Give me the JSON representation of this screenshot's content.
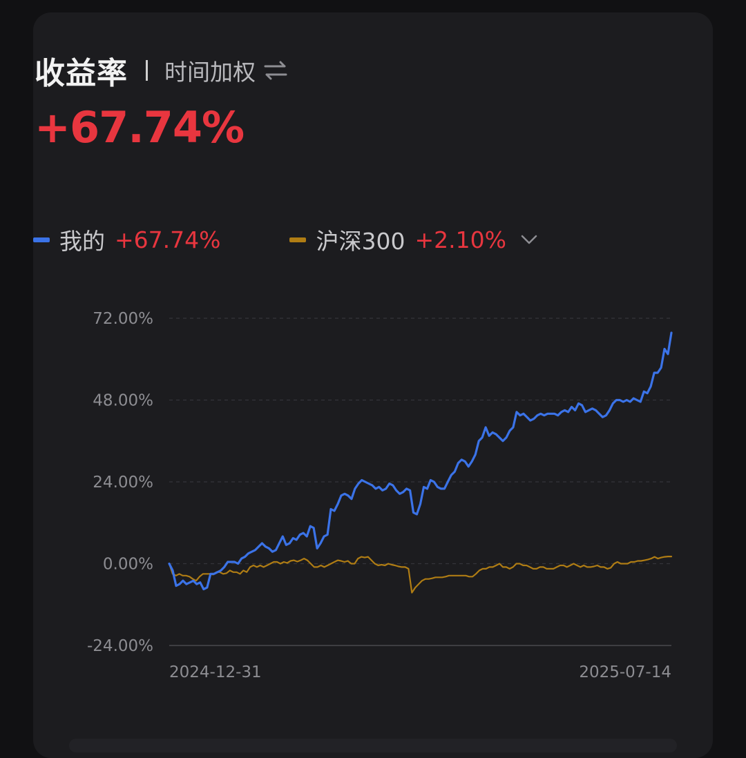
{
  "header": {
    "title": "收益率",
    "subtitle": "时间加权",
    "swap_icon": "swap-arrows-icon"
  },
  "summary": {
    "value": "+67.74%"
  },
  "legend": {
    "mine": {
      "name": "我的",
      "value": "+67.74%",
      "color": "#3b73e8"
    },
    "index": {
      "name": "沪深300",
      "value": "+2.10%",
      "color": "#b07d14"
    },
    "dropdown_icon": "chevron-down-icon"
  },
  "colors": {
    "up": "#e8363f",
    "background": "#1c1c1f",
    "grid": "#3a3a3e"
  },
  "chart_data": {
    "type": "line",
    "x_start_label": "2024-12-31",
    "x_end_label": "2025-07-14",
    "yticks": [
      "72.00%",
      "48.00%",
      "24.00%",
      "0.00%",
      "-24.00%"
    ],
    "ylim": [
      -24,
      72
    ],
    "grid": true,
    "series": [
      {
        "name": "我的",
        "color": "#3b73e8",
        "values": [
          0,
          -2,
          -6.5,
          -6,
          -5,
          -6,
          -5.5,
          -5,
          -6,
          -5.5,
          -7.5,
          -7,
          -3,
          -3,
          -2.5,
          -2,
          -1,
          0.5,
          0.5,
          0.5,
          0,
          1.5,
          2,
          3,
          3.5,
          4,
          5,
          6,
          5,
          4.5,
          3.5,
          4,
          6,
          8,
          5.5,
          6,
          7.5,
          7,
          8.5,
          9,
          8,
          11,
          10.5,
          4.5,
          6,
          8,
          8.5,
          16,
          15.5,
          17.5,
          20,
          20.5,
          20,
          19,
          22,
          23.5,
          24.5,
          24,
          23.5,
          23,
          22,
          22.5,
          21.5,
          22,
          23.5,
          23,
          21.5,
          20.5,
          21,
          22,
          21.5,
          15,
          14.5,
          17.5,
          22.5,
          22,
          24.5,
          24,
          22.5,
          22,
          22,
          24,
          26,
          27,
          29.5,
          30.5,
          30,
          28.5,
          30,
          32,
          36,
          37,
          40,
          37.5,
          38.5,
          38,
          37,
          36,
          37,
          39,
          40,
          44.5,
          43.5,
          44,
          43,
          42,
          42.5,
          43.5,
          44,
          43.5,
          44,
          44,
          44,
          43.5,
          44.5,
          45,
          44.5,
          46,
          45,
          47,
          46.5,
          44.5,
          45,
          45.5,
          45,
          44,
          43,
          43.5,
          45,
          47,
          48,
          48,
          47.5,
          48,
          47.5,
          48.5,
          48,
          47.5,
          50.5,
          50,
          52,
          56,
          56,
          57.5,
          63,
          61.5,
          67.74
        ]
      },
      {
        "name": "沪深300",
        "color": "#b07d14",
        "values": [
          0,
          -3,
          -3.5,
          -3,
          -3.5,
          -3.5,
          -3.8,
          -4.5,
          -5,
          -3.8,
          -3,
          -3,
          -3,
          -3.2,
          -2.5,
          -2.5,
          -3,
          -2.8,
          -2,
          -2.5,
          -2.5,
          -3,
          -2,
          -2.5,
          -1,
          -0.5,
          -1,
          -0.5,
          -1,
          -0.5,
          0,
          0.5,
          0.5,
          0,
          0.5,
          0.2,
          0.8,
          1,
          0.6,
          1,
          1.5,
          1,
          0,
          -1,
          -1,
          -0.5,
          -1,
          -0.5,
          0,
          0.5,
          1,
          0.8,
          0.5,
          0.8,
          0,
          0,
          1.5,
          2,
          1.8,
          2,
          1,
          0,
          -0.5,
          -0.3,
          -0.5,
          0,
          -0.3,
          -0.5,
          -0.8,
          -1,
          -1,
          -1.5,
          -8.5,
          -7,
          -6,
          -5,
          -4.5,
          -4.5,
          -4.3,
          -4,
          -4,
          -4,
          -3.8,
          -3.5,
          -3.5,
          -3.5,
          -3.5,
          -3.5,
          -3.5,
          -3.8,
          -3.8,
          -3,
          -2,
          -1.5,
          -1.5,
          -1,
          -1,
          -0.5,
          0,
          -1,
          -1,
          -1.5,
          -1,
          0,
          0,
          -0.5,
          -0.5,
          -1,
          -1.5,
          -1.5,
          -1,
          -1,
          -1.5,
          -1.5,
          -1.5,
          -1,
          -0.5,
          -0.5,
          -1,
          -0.5,
          0,
          -0.5,
          -1,
          -0.5,
          -1,
          -1,
          -0.8,
          -0.5,
          -1,
          -1,
          -1.5,
          -1.2,
          0,
          0.5,
          0,
          0,
          0,
          0.5,
          0.5,
          0.8,
          0.8,
          1,
          1.2,
          1.5,
          2,
          1.5,
          1.8,
          2,
          2.1,
          2.1
        ]
      }
    ]
  }
}
